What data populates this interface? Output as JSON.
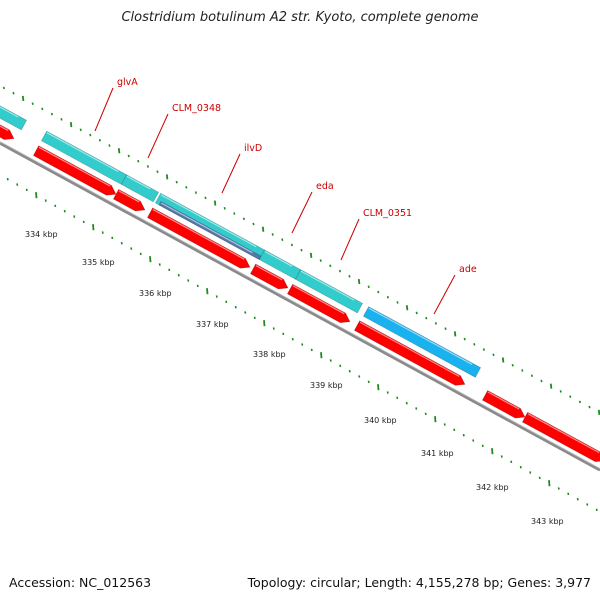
{
  "title": "Clostridium botulinum A2 str. Kyoto, complete genome",
  "footer": {
    "accession": "Accession: NC_012563",
    "stats": "Topology: circular; Length: 4,155,278 bp; Genes: 3,977"
  },
  "colors": {
    "backbone": "#8a8a8a",
    "tick": "#1f8a1f",
    "cds": "#ff0000",
    "gene_teal": "#33cccc",
    "gene_blue": "#1ab2ee",
    "gene_slate": "#5577aa",
    "label": "#cc0000"
  },
  "scale_labels": [
    "334 kbp",
    "335 kbp",
    "336 kbp",
    "337 kbp",
    "338 kbp",
    "339 kbp",
    "340 kbp",
    "341 kbp",
    "342 kbp",
    "343 kbp"
  ],
  "gene_labels": [
    "glvA",
    "CLM_0348",
    "ilvD",
    "eda",
    "CLM_0351",
    "ade"
  ]
}
